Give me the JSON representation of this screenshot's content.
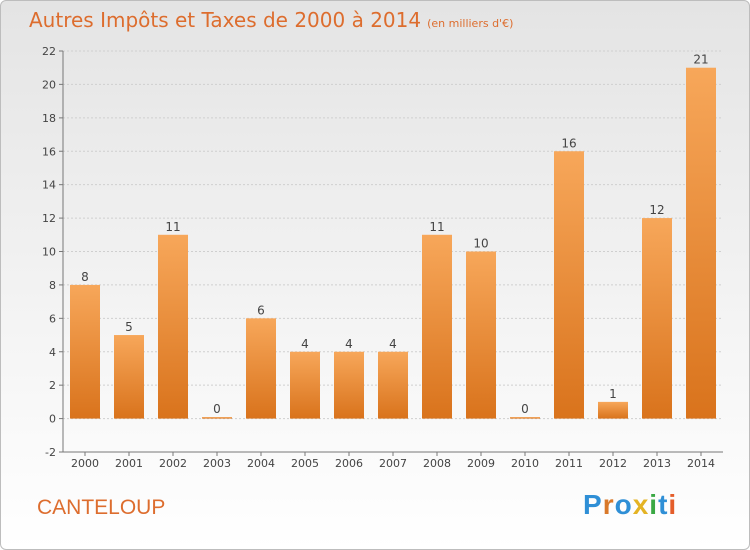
{
  "header": {
    "title": "Autres Impôts et Taxes de 2000 à 2014",
    "subtitle": "(en milliers d'€)"
  },
  "footer": {
    "place": "CANTELOUP",
    "brand": "Proxiti",
    "brand_letters": [
      {
        "ch": "P",
        "color": "#2f8fd6"
      },
      {
        "ch": "r",
        "color": "#d9792a"
      },
      {
        "ch": "o",
        "color": "#2f8fd6"
      },
      {
        "ch": "x",
        "color": "#e4b324"
      },
      {
        "ch": "i",
        "color": "#3aa844"
      },
      {
        "ch": "t",
        "color": "#2f8fd6"
      },
      {
        "ch": "i",
        "color": "#e45d2a"
      }
    ]
  },
  "chart_data": {
    "type": "bar",
    "title": "Autres Impôts et Taxes de 2000 à 2014",
    "subtitle": "(en milliers d'€)",
    "categories": [
      "2000",
      "2001",
      "2002",
      "2003",
      "2004",
      "2005",
      "2006",
      "2007",
      "2008",
      "2009",
      "2010",
      "2011",
      "2012",
      "2013",
      "2014"
    ],
    "values": [
      8,
      5,
      11,
      0,
      6,
      4,
      4,
      4,
      11,
      10,
      0,
      16,
      1,
      12,
      21
    ],
    "ylim": [
      -2,
      22
    ],
    "yticks": [
      -2,
      0,
      2,
      4,
      6,
      8,
      10,
      12,
      14,
      16,
      18,
      20,
      22
    ],
    "grid": true,
    "legend": "none",
    "colors": {
      "bar_top": "#f7a75a",
      "bar_bottom": "#d9731c",
      "title": "#dd6d2e"
    }
  }
}
